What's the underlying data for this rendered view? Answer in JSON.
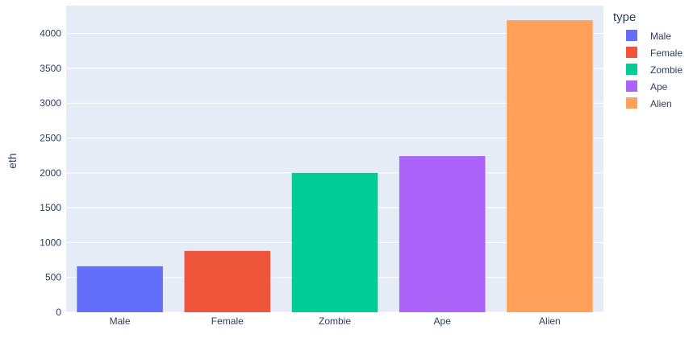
{
  "chart_data": {
    "type": "bar",
    "ylabel": "eth",
    "categories": [
      "Male",
      "Female",
      "Zombie",
      "Ape",
      "Alien"
    ],
    "values": [
      660,
      880,
      2000,
      2240,
      4190
    ],
    "ylim": [
      0,
      4400
    ],
    "yticks": [
      0,
      500,
      1000,
      1500,
      2000,
      2500,
      3000,
      3500,
      4000
    ],
    "grid": true,
    "legend": {
      "title": "type",
      "placement": "right",
      "items": [
        "Male",
        "Female",
        "Zombie",
        "Ape",
        "Alien"
      ]
    },
    "colors": [
      "#636efa",
      "#ef553b",
      "#00cc96",
      "#ab63fa",
      "#ffa15a"
    ],
    "plot_background": "#e5ecf6",
    "grid_color": "#ffffff"
  }
}
